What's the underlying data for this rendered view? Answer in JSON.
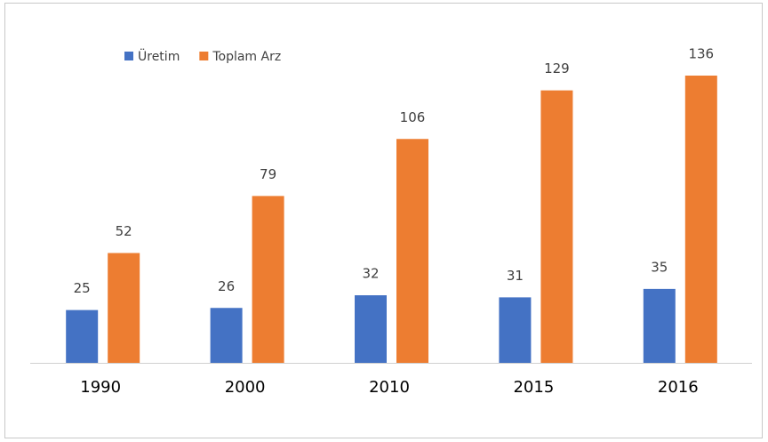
{
  "chart_data": {
    "type": "bar",
    "categories": [
      "1990",
      "2000",
      "2010",
      "2015",
      "2016"
    ],
    "series": [
      {
        "name": "Üretim",
        "color": "#4472c4",
        "values": [
          25,
          26,
          32,
          31,
          35
        ]
      },
      {
        "name": "Toplam Arz",
        "color": "#ed7d31",
        "values": [
          52,
          79,
          106,
          129,
          136
        ]
      }
    ],
    "legend": "top-left"
  }
}
